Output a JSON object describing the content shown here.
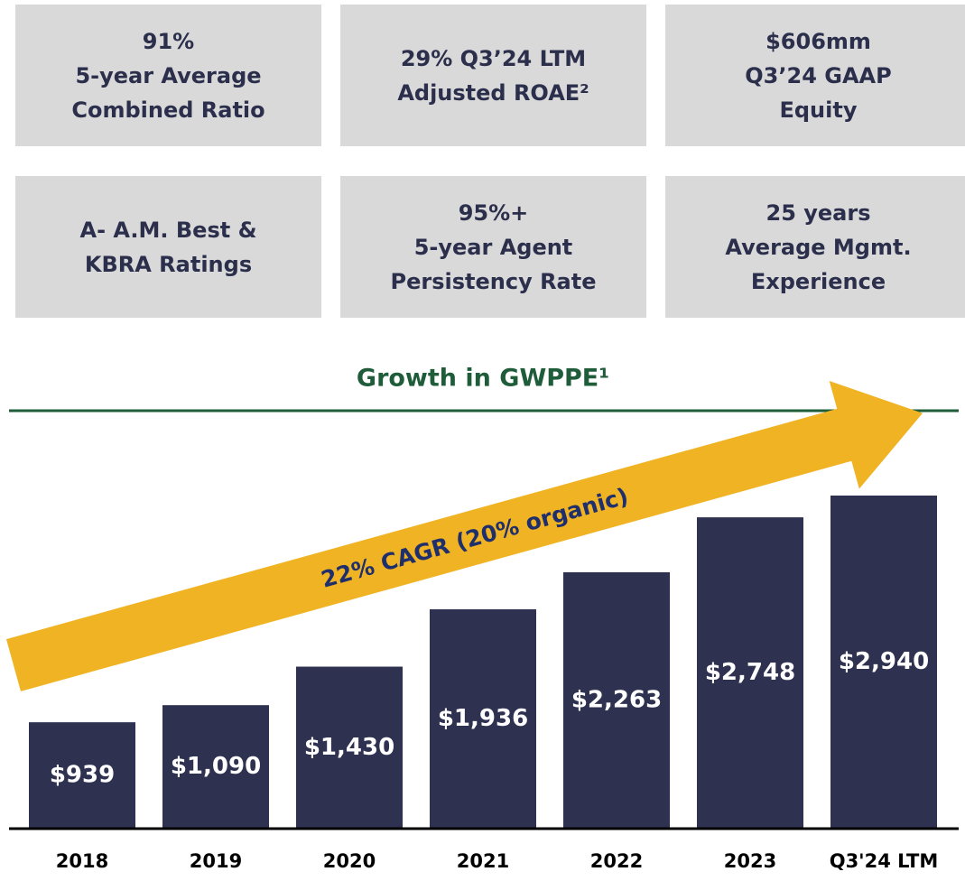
{
  "kpis": [
    {
      "lines": [
        "91%",
        "5-year Average",
        "Combined Ratio"
      ]
    },
    {
      "lines": [
        "29% Q3’24 LTM",
        "Adjusted ROAE²"
      ]
    },
    {
      "lines": [
        "$606mm",
        "Q3’24 GAAP",
        "Equity"
      ]
    },
    {
      "lines": [
        "A- A.M. Best &",
        "KBRA Ratings"
      ]
    },
    {
      "lines": [
        "95%+",
        "5-year Agent",
        "Persistency Rate"
      ]
    },
    {
      "lines": [
        "25 years",
        "Average Mgmt.",
        "Experience"
      ]
    }
  ],
  "chart_data": {
    "type": "bar",
    "title": "Growth in GWPPE¹",
    "annotation": "22% CAGR (20% organic)",
    "categories": [
      "2018",
      "2019",
      "2020",
      "2021",
      "2022",
      "2023",
      "Q3'24 LTM"
    ],
    "values": [
      939,
      1090,
      1430,
      1936,
      2263,
      2748,
      2940
    ],
    "value_labels": [
      "$939",
      "$1,090",
      "$1,430",
      "$1,936",
      "$2,263",
      "$2,748",
      "$2,940"
    ],
    "color": "#2e3150"
  }
}
